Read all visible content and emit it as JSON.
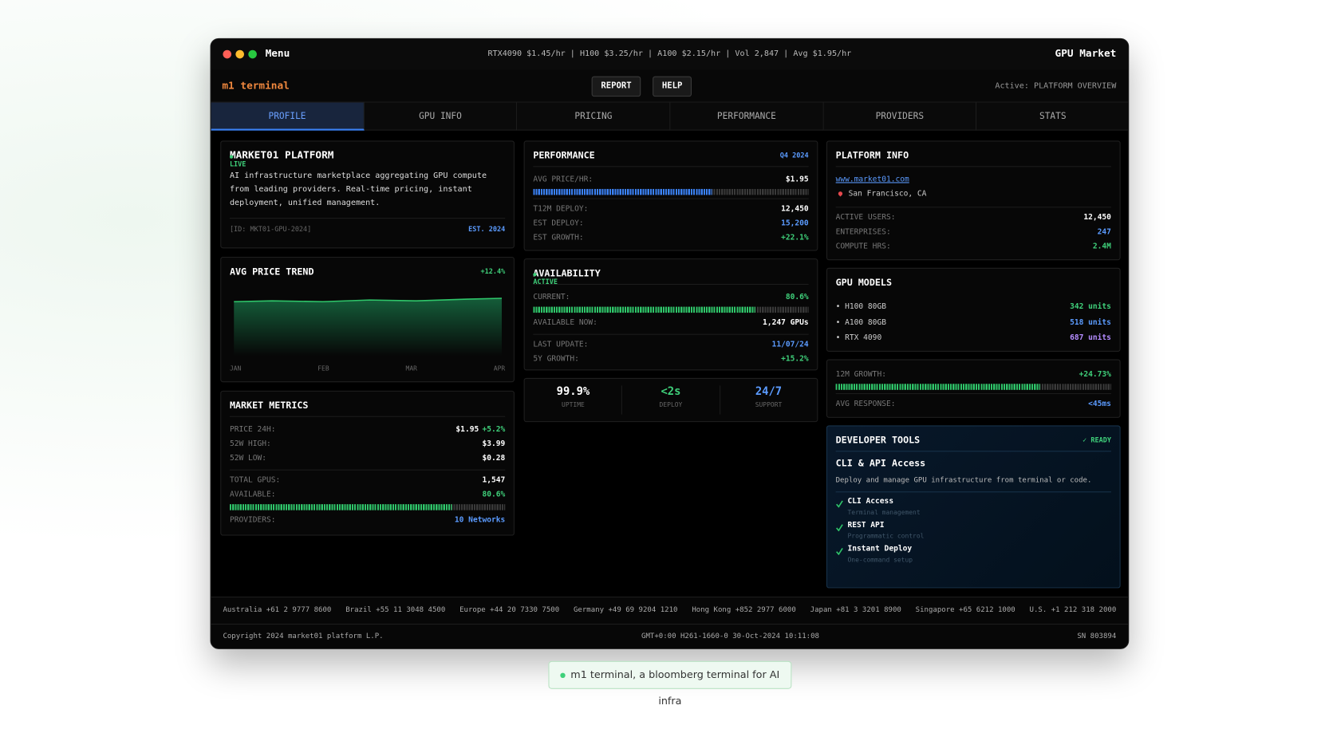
{
  "window": {
    "menu": "Menu",
    "ticker": "RTX4090 $1.45/hr | H100 $3.25/hr | A100 $2.15/hr | Vol 2,847 | Avg $1.95/hr",
    "title": "GPU Market"
  },
  "toolbar": {
    "brand": "m1 terminal",
    "buttons": [
      "REPORT",
      "HELP"
    ],
    "active": "Active: PLATFORM OVERVIEW"
  },
  "tabs": [
    "PROFILE",
    "GPU INFO",
    "PRICING",
    "PERFORMANCE",
    "PROVIDERS",
    "STATS"
  ],
  "profile": {
    "title": "MARKET01 PLATFORM",
    "status": "LIVE",
    "description": "AI infrastructure marketplace aggregating GPU compute from leading providers. Real-time pricing, instant deployment, unified management.",
    "id": "[ID: MKT01-GPU-2024]",
    "established": "EST. 2024"
  },
  "trend": {
    "title": "AVG PRICE TREND",
    "change": "+12.4%",
    "months": [
      "JAN",
      "FEB",
      "MAR",
      "APR"
    ]
  },
  "metrics": {
    "title": "MARKET METRICS",
    "rows": [
      {
        "label": "PRICE 24H:",
        "value": "$1.95",
        "change": "+5.2%"
      },
      {
        "label": "52W HIGH:",
        "value": "$3.99"
      },
      {
        "label": "52W LOW:",
        "value": "$0.28"
      },
      {
        "label": "TOTAL GPUS:",
        "value": "1,547"
      },
      {
        "label": "AVAILABLE:",
        "value": "80.6%"
      },
      {
        "label": "PROVIDERS:",
        "value": "10 Networks"
      }
    ]
  },
  "performance": {
    "title": "PERFORMANCE",
    "period": "Q4 2024",
    "rows": [
      {
        "label": "AVG PRICE/HR:",
        "value": "$1.95"
      },
      {
        "label": "T12M DEPLOY:",
        "value": "12,450"
      },
      {
        "label": "EST DEPLOY:",
        "value": "15,200"
      },
      {
        "label": "EST GROWTH:",
        "value": "+22.1%"
      }
    ]
  },
  "availability": {
    "title": "AVAILABILITY",
    "status": "ACTIVE",
    "rows": [
      {
        "label": "CURRENT:",
        "value": "80.6%"
      },
      {
        "label": "AVAILABLE NOW:",
        "value": "1,247 GPUs"
      },
      {
        "label": "LAST UPDATE:",
        "value": "11/07/24"
      },
      {
        "label": "5Y GROWTH:",
        "value": "+15.2%"
      }
    ]
  },
  "stats": [
    {
      "value": "99.9%",
      "label": "UPTIME"
    },
    {
      "value": "<2s",
      "label": "DEPLOY"
    },
    {
      "value": "24/7",
      "label": "SUPPORT"
    }
  ],
  "platform": {
    "title": "PLATFORM INFO",
    "url": "www.market01.com",
    "location": "San Francisco, CA",
    "rows": [
      {
        "label": "ACTIVE USERS:",
        "value": "12,450"
      },
      {
        "label": "ENTERPRISES:",
        "value": "247"
      },
      {
        "label": "COMPUTE HRS:",
        "value": "2.4M"
      }
    ]
  },
  "gpu_models": {
    "title": "GPU MODELS",
    "rows": [
      {
        "label": "• H100 80GB",
        "value": "342 units"
      },
      {
        "label": "• A100 80GB",
        "value": "518 units"
      },
      {
        "label": "• RTX 4090",
        "value": "687 units"
      }
    ]
  },
  "growth": {
    "rows": [
      {
        "label": "12M GROWTH:",
        "value": "+24.73%"
      },
      {
        "label": "AVG RESPONSE:",
        "value": "<45ms"
      }
    ]
  },
  "developer": {
    "title": "DEVELOPER TOOLS",
    "status": "✓ READY",
    "heading": "CLI & API Access",
    "description": "Deploy and manage GPU infrastructure from terminal or code.",
    "items": [
      {
        "name": "CLI Access",
        "detail": "Terminal management"
      },
      {
        "name": "REST API",
        "detail": "Programmatic control"
      },
      {
        "name": "Instant Deploy",
        "detail": "One-command setup"
      }
    ]
  },
  "footer": {
    "phones": [
      "Australia +61 2 9777 8600",
      "Brazil +55 11 3048 4500",
      "Europe +44 20 7330 7500",
      "Germany +49 69 9204 1210",
      "Hong Kong +852 2977 6000",
      "Japan +81 3 3201 8900",
      "Singapore +65 6212 1000",
      "U.S. +1 212 318 2000"
    ],
    "copyright": "Copyright 2024 market01 platform L.P.",
    "timestamp": "GMT+0:00 H261-1660-0 30-Oct-2024 10:11:08",
    "serial": "SN 803894"
  },
  "caption": "m1 terminal, a bloomberg terminal for AI infra"
}
